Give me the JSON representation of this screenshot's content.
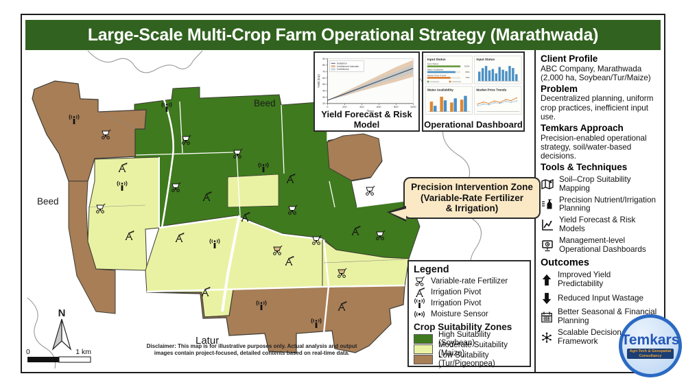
{
  "title": "Large-Scale Multi-Crop Farm Operational Strategy (Marathwada)",
  "colors": {
    "title_bg": "#31621f",
    "zone_high": "#3f7a1e",
    "zone_moderate": "#e9f2a3",
    "zone_low": "#a87e57",
    "callout_bg": "#fbe9c6",
    "logo_blue": "#2b6ac3"
  },
  "map": {
    "region_labels": [
      "Beed",
      "Beed",
      "Latur"
    ],
    "north_label": "N",
    "scale_start": "0",
    "scale_end": "1 km",
    "callout_line1": "Precision Intervention Zone",
    "callout_line2": "(Variable-Rate Fertilizer",
    "callout_line3": "& Irrigation)",
    "disclaimer_line1": "Disclaimer: This map is for illustrative purposes only. Actual analysis and output",
    "disclaimer_line2": "images contain project-focused, detailed contents based on real-time data."
  },
  "insets": {
    "yield_title": "Yield Forecast & Risk Model",
    "dashboard_title": "Operational Dashboard"
  },
  "legend": {
    "title": "Legend",
    "symbols": [
      {
        "icon": "fertilizer-icon",
        "label": "Variable-rate Fertilizer"
      },
      {
        "icon": "pivot-icon",
        "label": "Irrigation Pivot"
      },
      {
        "icon": "pivot-antenna-icon",
        "label": "Irrigation Pivot"
      },
      {
        "icon": "moisture-sensor-icon",
        "label": "Moisture Sensor"
      }
    ],
    "zones_title": "Crop Suitability Zones",
    "zones": [
      {
        "color": "#3f7a1e",
        "label": "High Suitability (Soybean)"
      },
      {
        "color": "#e9f2a3",
        "label": "Moderate Suitability (Maize)"
      },
      {
        "color": "#a87e57",
        "label": "Low Suitability (Tur/Pigeonpea)"
      }
    ]
  },
  "sidebar": {
    "sections": [
      {
        "heading": "Client Profile",
        "body": "ABC Company, Marathwada (2,000 ha, Soybean/Tur/Maize)"
      },
      {
        "heading": "Problem",
        "body": "Decentralized planning, uniform crop practices, inefficient input use."
      },
      {
        "heading": "Temkars Approach",
        "body": "Precision-enabled operational strategy, soil/water-based decisions."
      }
    ],
    "tools": {
      "heading": "Tools & Techniques",
      "items": [
        {
          "icon": "map-icon",
          "label": "Soil–Crop Suitability Mapping"
        },
        {
          "icon": "nutrient-icon",
          "label": "Precision Nutrient/Irrigation Planning"
        },
        {
          "icon": "chart-icon",
          "label": "Yield Forecast & Risk Models"
        },
        {
          "icon": "dashboard-icon",
          "label": "Management-level Operational Dashboards"
        }
      ]
    },
    "outcomes": {
      "heading": "Outcomes",
      "items": [
        {
          "icon": "arrow-up-icon",
          "label": "Improved Yield Predictability"
        },
        {
          "icon": "arrow-down-icon",
          "label": "Reduced Input Wastage"
        },
        {
          "icon": "calendar-icon",
          "label": "Better Seasonal & Financial Planning"
        },
        {
          "icon": "network-icon",
          "label": "Scalable Decision-Making Framework"
        }
      ]
    }
  },
  "logo": {
    "name": "Temkars",
    "tagline_line1": "Agri-Tech & Geospatial",
    "tagline_line2": "Consultancy"
  },
  "chart_data": [
    {
      "type": "area",
      "title": "Yield Forecast & Risk Model",
      "xlabel": "Time",
      "ylabel": "Yield (ton)",
      "xlim": [
        0,
        1000
      ],
      "ylim": [
        20,
        90
      ],
      "xticks": [
        0,
        200,
        400,
        600,
        800,
        1000
      ],
      "yticks": [
        20,
        30,
        40,
        50,
        60,
        70,
        80,
        90
      ],
      "x": [
        0,
        200,
        400,
        600,
        800,
        1000
      ],
      "series": [
        {
          "name": "Guidance",
          "color": "#3a4a63",
          "values": [
            25,
            35,
            45,
            55,
            65,
            75
          ]
        }
      ],
      "bands": [
        {
          "name": "Confidence Intervals",
          "color": "#d8b08a",
          "upper": [
            25,
            38,
            51,
            64,
            77,
            88
          ],
          "lower": [
            25,
            32,
            40,
            47,
            54,
            62
          ]
        },
        {
          "name": "Confidence",
          "color": "#bcc9d1",
          "upper": [
            25,
            36,
            48,
            59,
            70,
            81
          ],
          "lower": [
            25,
            33,
            42,
            51,
            59,
            68
          ]
        }
      ],
      "legend_position": "top-left",
      "grid": false
    },
    {
      "type": "dashboard",
      "title": "Operational Dashboard",
      "panels": [
        {
          "type": "hbar",
          "title": "Input Status",
          "rows": [
            {
              "label": "Input Status",
              "value": 100,
              "pct": "100%",
              "color": "#6a9a3f"
            },
            {
              "label": "Water Availability",
              "value": 85,
              "pct": "85%",
              "color": "#4a90c4"
            },
            {
              "label": "Market Price Trends",
              "value": 70,
              "pct": "70%",
              "color": "#d97d2e"
            }
          ],
          "footer_colors": [
            "#6a9a3f",
            "#d97d2e"
          ]
        },
        {
          "type": "bar",
          "title": "Input Status",
          "color": "#4a90c4",
          "values": [
            55,
            75,
            88,
            62,
            70,
            45,
            82,
            66,
            58,
            88,
            76,
            40
          ]
        },
        {
          "type": "grouped_bar",
          "title": "Water Availability",
          "colors": [
            "#e0862f",
            "#4a90c4"
          ],
          "series": [
            [
              60,
              90,
              55,
              72
            ],
            [
              35,
              68,
              80,
              95
            ]
          ]
        },
        {
          "type": "line",
          "title": "Market Price Trends",
          "colors": [
            "#e0862f",
            "#7ab0d4"
          ],
          "series": [
            [
              40,
              52,
              44,
              58,
              50,
              66,
              60,
              76
            ],
            [
              30,
              40,
              36,
              48,
              44,
              56,
              50,
              58
            ]
          ]
        }
      ]
    }
  ]
}
